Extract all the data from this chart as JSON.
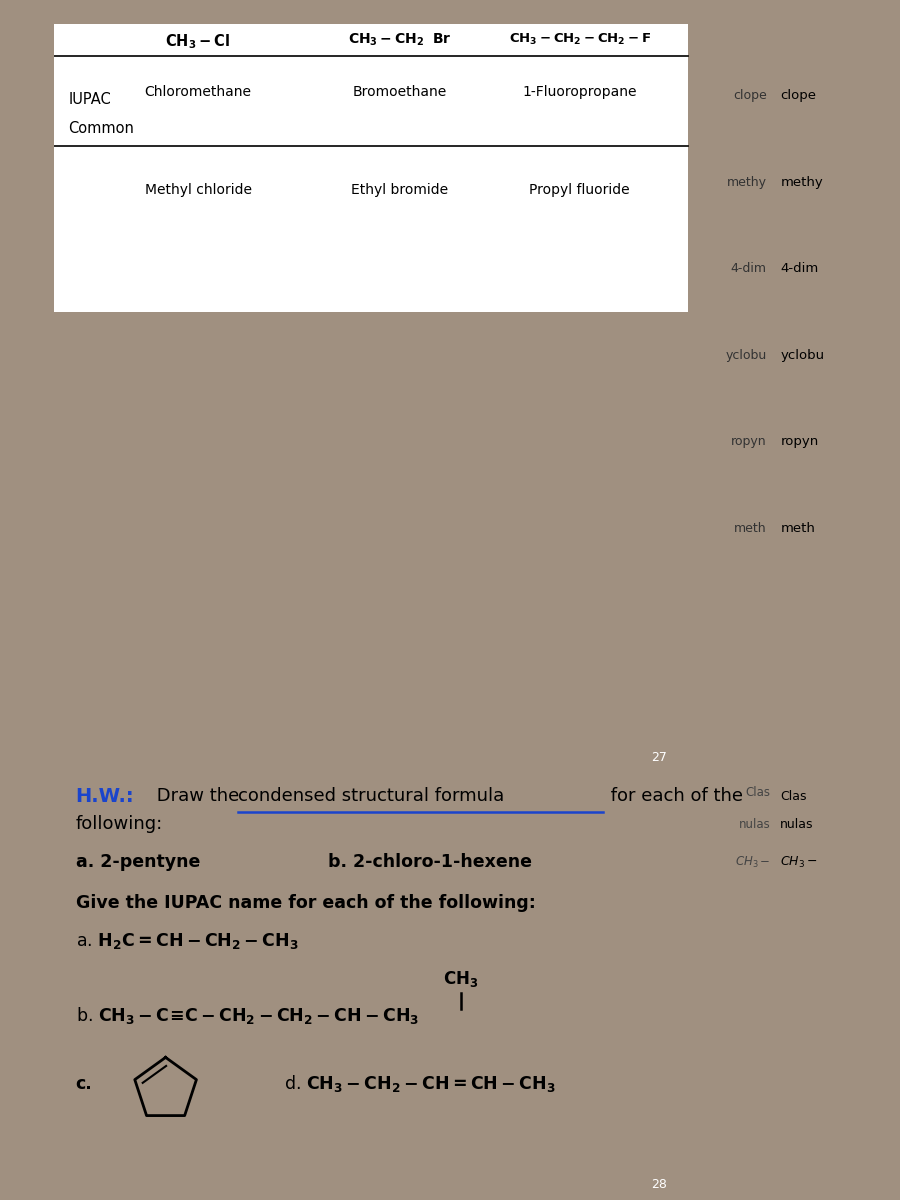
{
  "fig_bg": "#a09080",
  "top_page_bg": "#dcdad6",
  "bottom_page_bg": "#f2f0ec",
  "banner_color": "#b07848",
  "table_bg": "#ffffff",
  "top_left_bg": "#6b4060",
  "top_formulas": [
    "CH₃–Cl",
    "CH₃–CH₂   Br",
    "CH₃–CH₂–CH₂–F"
  ],
  "iupac_names": [
    "Chloromethane",
    "Bromoethane",
    "1-Fluoropropane"
  ],
  "common_names": [
    "Methyl chloride",
    "Ethyl bromide",
    "Propyl fluoride"
  ],
  "side_right_top": [
    "clope",
    "methy",
    "4-dim",
    "yclobu",
    "ropyn",
    "meth"
  ],
  "page_27": "27",
  "page_28": "28",
  "hw_label": "H.W.:",
  "hw_label_color": "#1a44cc",
  "hw_draw_text": " Draw the ",
  "hw_underline_text": "condensed structural formula",
  "hw_end_text": " for each of the",
  "hw_following": "following:",
  "hw_a": "a. 2-pentyne",
  "hw_b": "b. 2-chloro-1-hexene",
  "iupac_section_header": "Give the IUPAC name for each of the following:",
  "right_bot_texts": [
    "Clas",
    "nulas",
    "CH₃–"
  ]
}
